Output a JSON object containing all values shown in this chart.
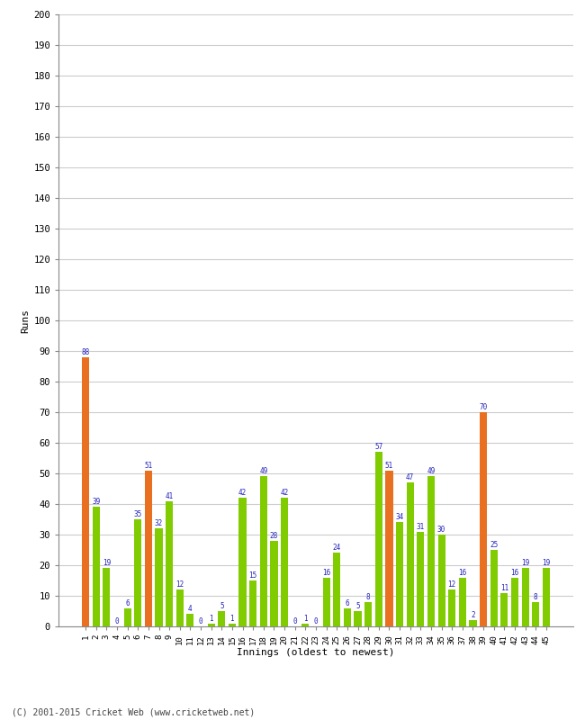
{
  "innings": [
    1,
    2,
    3,
    4,
    5,
    6,
    7,
    8,
    9,
    10,
    11,
    12,
    13,
    14,
    15,
    16,
    17,
    18,
    19,
    20,
    21,
    22,
    23,
    24,
    25,
    26,
    27,
    28,
    29,
    30,
    31,
    32,
    33,
    34,
    35,
    36,
    37,
    38,
    39,
    40,
    41,
    42,
    43,
    44,
    45
  ],
  "values": [
    88,
    39,
    19,
    0,
    6,
    35,
    51,
    32,
    41,
    12,
    4,
    0,
    1,
    5,
    1,
    42,
    15,
    49,
    28,
    42,
    0,
    1,
    0,
    16,
    24,
    6,
    5,
    8,
    57,
    51,
    34,
    47,
    31,
    49,
    30,
    12,
    16,
    2,
    70,
    25,
    11,
    16,
    19,
    8,
    19
  ],
  "colors": [
    "orange",
    "green",
    "green",
    "green",
    "green",
    "green",
    "orange",
    "green",
    "green",
    "green",
    "green",
    "green",
    "green",
    "green",
    "green",
    "green",
    "green",
    "green",
    "green",
    "green",
    "green",
    "green",
    "green",
    "green",
    "green",
    "green",
    "green",
    "green",
    "green",
    "orange",
    "green",
    "green",
    "green",
    "green",
    "green",
    "green",
    "green",
    "green",
    "orange",
    "green",
    "green",
    "green",
    "green",
    "green",
    "green"
  ],
  "bar_color_orange": "#e87020",
  "bar_color_green": "#80cc00",
  "xlabel": "Innings (oldest to newest)",
  "ylabel": "Runs",
  "ylim": [
    0,
    200
  ],
  "yticks": [
    0,
    10,
    20,
    30,
    40,
    50,
    60,
    70,
    80,
    90,
    100,
    110,
    120,
    130,
    140,
    150,
    160,
    170,
    180,
    190,
    200
  ],
  "label_color": "#2222bb",
  "footer": "(C) 2001-2015 Cricket Web (www.cricketweb.net)",
  "bg_color": "#ffffff",
  "grid_color": "#cccccc"
}
